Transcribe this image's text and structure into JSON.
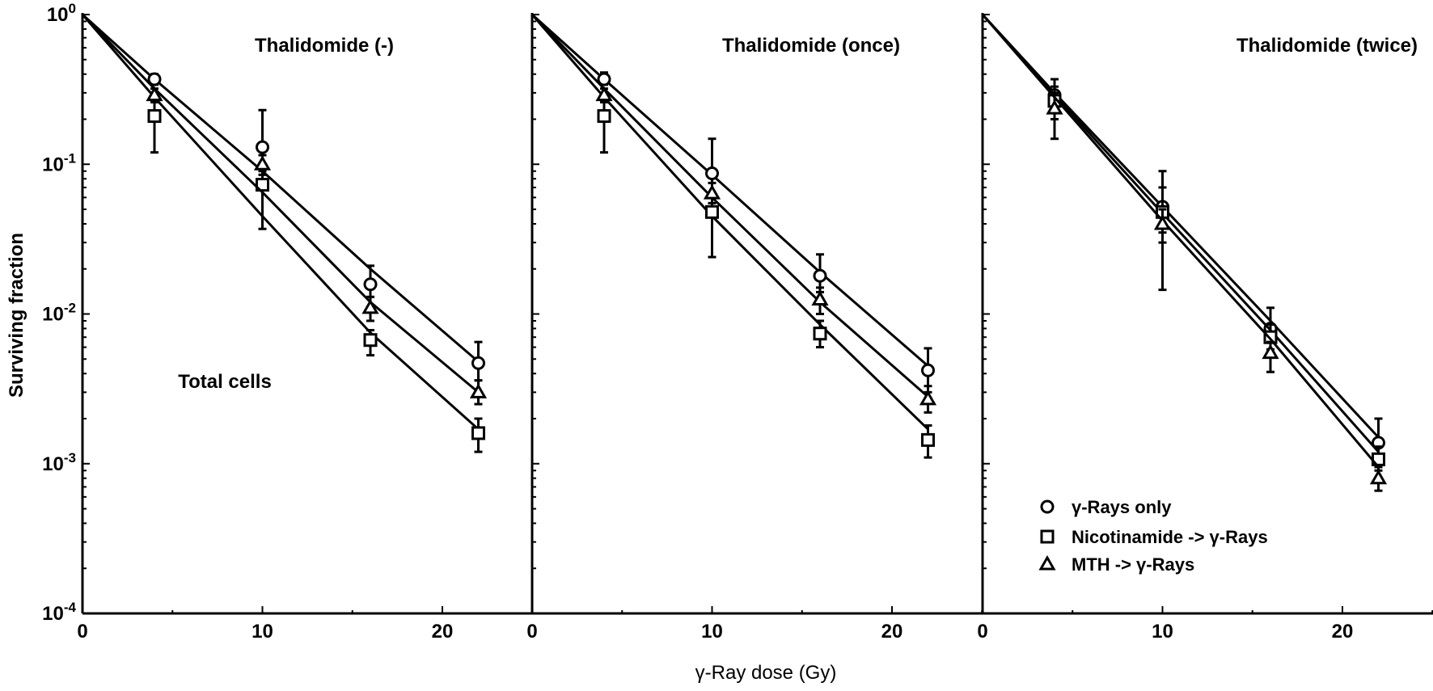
{
  "chart_data": {
    "type": "scatter",
    "ylabel": "Surviving fraction",
    "xlabel": "γ-Ray dose (Gy)",
    "y_scale": "log",
    "ylim": [
      0.0001,
      1
    ],
    "y_tick_labels": [
      {
        "base": "10",
        "exp": "0"
      },
      {
        "base": "10",
        "exp": "-1"
      },
      {
        "base": "10",
        "exp": "-2"
      },
      {
        "base": "10",
        "exp": "-3"
      },
      {
        "base": "10",
        "exp": "-4"
      }
    ],
    "xlim": [
      0,
      25
    ],
    "x_ticks": [
      "0",
      "10",
      "20"
    ],
    "grid": false,
    "legend": {
      "placement": "bottom-right of third panel",
      "entries": [
        {
          "marker": "circle",
          "label": "γ-Rays only"
        },
        {
          "marker": "square",
          "label": "Nicotinamide -> γ-Rays"
        },
        {
          "marker": "triangle",
          "label": "MTH -> γ-Rays"
        }
      ]
    },
    "x": [
      4,
      10,
      16,
      22
    ],
    "fit_x": [
      0,
      4,
      10,
      16,
      22
    ],
    "panels": [
      {
        "title": "Thalidomide (-)",
        "annotation": "Total cells",
        "series": [
          {
            "name": "γ-Rays only",
            "marker": "circle",
            "values": [
              0.37,
              0.13,
              0.0158,
              0.0047
            ],
            "errors": [
              [
                0.34,
                0.4
              ],
              [
                0.1,
                0.23
              ],
              [
                0.013,
                0.021
              ],
              [
                0.0036,
                0.0065
              ]
            ],
            "fit": [
              1,
              0.37,
              0.09,
              0.02,
              0.0048
            ]
          },
          {
            "name": "Nicotinamide -> γ-Rays",
            "marker": "square",
            "values": [
              0.21,
              0.073,
              0.0067,
              0.0016
            ],
            "errors": [
              [
                0.12,
                0.26
              ],
              [
                0.037,
                0.09
              ],
              [
                0.0053,
                0.0078
              ],
              [
                0.0012,
                0.002
              ]
            ],
            "fit": [
              1,
              0.28,
              0.045,
              0.0075,
              0.0017
            ]
          },
          {
            "name": "MTH -> γ-Rays",
            "marker": "triangle",
            "values": [
              0.29,
              0.1,
              0.011,
              0.003
            ],
            "errors": [
              [
                0.26,
                0.32
              ],
              [
                0.085,
                0.115
              ],
              [
                0.009,
                0.013
              ],
              [
                0.0025,
                0.0036
              ]
            ],
            "fit": [
              1,
              0.32,
              0.065,
              0.012,
              0.003
            ]
          }
        ]
      },
      {
        "title": "Thalidomide (once)",
        "series": [
          {
            "name": "γ-Rays only",
            "marker": "circle",
            "values": [
              0.37,
              0.087,
              0.018,
              0.0042
            ],
            "errors": [
              [
                0.34,
                0.41
              ],
              [
                0.06,
                0.148
              ],
              [
                0.014,
                0.025
              ],
              [
                0.003,
                0.0059
              ]
            ],
            "fit": [
              1,
              0.37,
              0.085,
              0.019,
              0.0045
            ]
          },
          {
            "name": "Nicotinamide -> γ-Rays",
            "marker": "square",
            "values": [
              0.21,
              0.048,
              0.0074,
              0.00144
            ],
            "errors": [
              [
                0.12,
                0.26
              ],
              [
                0.024,
                0.06
              ],
              [
                0.006,
                0.009
              ],
              [
                0.0011,
                0.0018
              ]
            ],
            "fit": [
              1,
              0.28,
              0.045,
              0.0085,
              0.0017
            ]
          },
          {
            "name": "MTH -> γ-Rays",
            "marker": "triangle",
            "values": [
              0.29,
              0.064,
              0.0125,
              0.0027
            ],
            "errors": [
              [
                0.26,
                0.32
              ],
              [
                0.055,
                0.075
              ],
              [
                0.01,
                0.015
              ],
              [
                0.0022,
                0.0033
              ]
            ],
            "fit": [
              1,
              0.32,
              0.06,
              0.012,
              0.0028
            ]
          }
        ]
      },
      {
        "title": "Thalidomide (twice)",
        "series": [
          {
            "name": "γ-Rays only",
            "marker": "circle",
            "values": [
              0.29,
              0.052,
              0.008,
              0.00138
            ],
            "errors": [
              [
                0.25,
                0.37
              ],
              [
                0.035,
                0.09
              ],
              [
                0.0065,
                0.011
              ],
              [
                0.0011,
                0.002
              ]
            ],
            "fit": [
              1,
              0.3,
              0.052,
              0.009,
              0.0015
            ]
          },
          {
            "name": "Nicotinamide -> γ-Rays",
            "marker": "square",
            "values": [
              0.265,
              0.048,
              0.007,
              0.00107
            ],
            "errors": [
              [
                0.2,
                0.33
              ],
              [
                0.03,
                0.07
              ],
              [
                0.0058,
                0.0085
              ],
              [
                0.0009,
                0.0013
              ]
            ],
            "fit": [
              1,
              0.29,
              0.047,
              0.0078,
              0.0012
            ]
          },
          {
            "name": "MTH -> γ-Rays",
            "marker": "triangle",
            "values": [
              0.236,
              0.04,
              0.0055,
              0.0008
            ],
            "errors": [
              [
                0.148,
                0.3
              ],
              [
                0.0145,
                0.05
              ],
              [
                0.0041,
                0.0065
              ],
              [
                0.00066,
                0.00095
              ]
            ],
            "fit": [
              1,
              0.28,
              0.042,
              0.0068,
              0.00095
            ]
          }
        ]
      }
    ]
  }
}
